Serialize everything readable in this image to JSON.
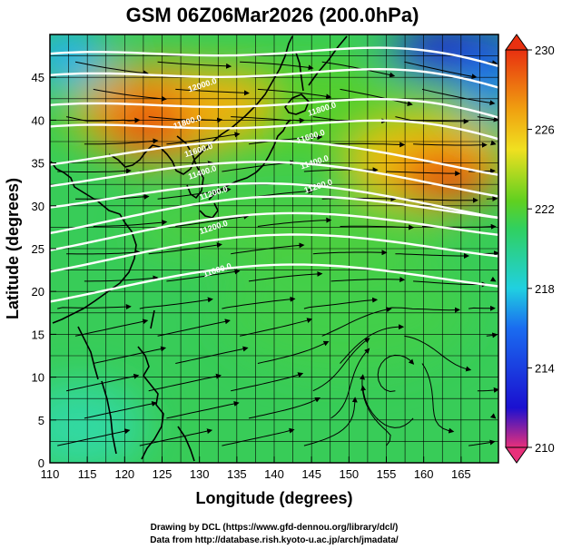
{
  "title": "GSM 06Z06Mar2026 (200.0hPa)",
  "xlabel": "Longitude (degrees)",
  "ylabel": "Latitude  (degrees)",
  "credits": {
    "line1": "Drawing by DCL (https://www.gfd-dennou.org/library/dcl/)",
    "line2": "Data from http://database.rish.kyoto-u.ac.jp/arch/jmadata/"
  },
  "map": {
    "lon_range": [
      110,
      170
    ],
    "lat_range": [
      0,
      50
    ],
    "lon_ticks": [
      "110",
      "115",
      "120",
      "125",
      "130",
      "135",
      "140",
      "145",
      "150",
      "155",
      "160",
      "165"
    ],
    "lat_ticks": [
      "0",
      "5",
      "10",
      "15",
      "20",
      "25",
      "30",
      "35",
      "40",
      "45"
    ],
    "grid": "every 2.5 degrees"
  },
  "colorbar": {
    "variable": "temperature (K)",
    "range": [
      210,
      230
    ],
    "tick_labels": [
      "230",
      "226",
      "222",
      "218",
      "214",
      "210"
    ],
    "colors": [
      "#e8307a",
      "#1a10d0",
      "#1a6cf0",
      "#20d0e0",
      "#30d060",
      "#60d020",
      "#f0e020",
      "#f0a010",
      "#e83010"
    ]
  },
  "contours": {
    "color": "#ffffff",
    "levels": [
      "12000",
      "12000",
      "11800",
      "11800",
      "11600",
      "11600",
      "11400",
      "11400",
      "11200",
      "11200",
      "11000"
    ],
    "labels": [
      {
        "text": "12000.0",
        "lon": 130.5,
        "lat": 43.8
      },
      {
        "text": "11800.0",
        "lon": 128.5,
        "lat": 39.5
      },
      {
        "text": "11600.0",
        "lon": 130.0,
        "lat": 36.2
      },
      {
        "text": "11400.0",
        "lon": 130.5,
        "lat": 33.6
      },
      {
        "text": "11200.0",
        "lon": 132.0,
        "lat": 31.2
      },
      {
        "text": "11200.0",
        "lon": 132.0,
        "lat": 27.2
      },
      {
        "text": "11000.0",
        "lon": 132.5,
        "lat": 22.2
      },
      {
        "text": "11800.0",
        "lon": 146.5,
        "lat": 41.0
      },
      {
        "text": "11600.0",
        "lon": 145.0,
        "lat": 37.8
      },
      {
        "text": "11400.0",
        "lon": 145.5,
        "lat": 34.8
      },
      {
        "text": "11200.0",
        "lon": 146.0,
        "lat": 32.0
      }
    ]
  },
  "field_features": [
    {
      "kind": "warm",
      "lon": 126,
      "lat": 41,
      "value": 228
    },
    {
      "kind": "warm",
      "lon": 131,
      "lat": 43,
      "value": 227
    },
    {
      "kind": "warm",
      "lon": 160,
      "lat": 35,
      "value": 229
    },
    {
      "kind": "cold",
      "lon": 162,
      "lat": 47,
      "value": 213
    },
    {
      "kind": "cool",
      "lon": 113,
      "lat": 46,
      "value": 217
    },
    {
      "kind": "cool",
      "lon": 115,
      "lat": 4,
      "value": 219
    }
  ]
}
